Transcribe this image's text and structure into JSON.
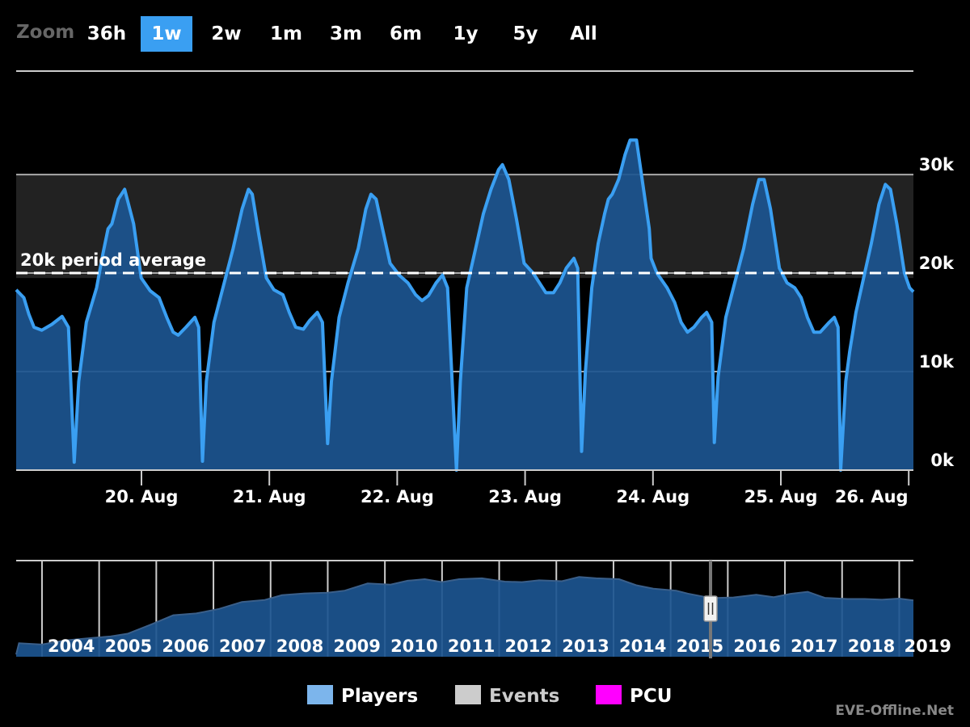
{
  "zoom": {
    "label": "Zoom",
    "buttons": [
      {
        "label": "36h",
        "active": false
      },
      {
        "label": "1w",
        "active": true
      },
      {
        "label": "2w",
        "active": false
      },
      {
        "label": "1m",
        "active": false
      },
      {
        "label": "3m",
        "active": false
      },
      {
        "label": "6m",
        "active": false
      },
      {
        "label": "1y",
        "active": false
      },
      {
        "label": "5y",
        "active": false
      },
      {
        "label": "All",
        "active": false
      }
    ]
  },
  "watermark": "EVE-Offline.Net",
  "chart_data": [
    {
      "type": "area",
      "title": "",
      "x_start": "19. Aug 00:00",
      "x_end": "26. Aug 01:00",
      "x_ticks": [
        "20. Aug",
        "21. Aug",
        "22. Aug",
        "23. Aug",
        "24. Aug",
        "25. Aug",
        "26. Aug"
      ],
      "y_ticks": [
        "0k",
        "10k",
        "20k",
        "30k"
      ],
      "ylim": [
        0,
        40500
      ],
      "plot_band": {
        "from": 19500,
        "to": 30000,
        "color": "#222222"
      },
      "plot_line": {
        "value": 20000,
        "label": "20k period average"
      },
      "grid": true,
      "series": [
        {
          "name": "Players",
          "color": "#3a9ff2",
          "fill": "#1c5590",
          "points": [
            [
              0.0,
              18300
            ],
            [
              0.06,
              17500
            ],
            [
              0.1,
              15800
            ],
            [
              0.14,
              14500
            ],
            [
              0.2,
              14200
            ],
            [
              0.28,
              14800
            ],
            [
              0.36,
              15600
            ],
            [
              0.41,
              14500
            ],
            [
              0.455,
              800
            ],
            [
              0.49,
              9000
            ],
            [
              0.55,
              15000
            ],
            [
              0.63,
              18500
            ],
            [
              0.68,
              22000
            ],
            [
              0.72,
              24500
            ],
            [
              0.75,
              25000
            ],
            [
              0.8,
              27500
            ],
            [
              0.85,
              28500
            ],
            [
              0.92,
              25000
            ],
            [
              0.98,
              19500
            ],
            [
              1.05,
              18200
            ],
            [
              1.12,
              17500
            ],
            [
              1.18,
              15500
            ],
            [
              1.23,
              14000
            ],
            [
              1.27,
              13700
            ],
            [
              1.33,
              14500
            ],
            [
              1.4,
              15500
            ],
            [
              1.43,
              14500
            ],
            [
              1.46,
              900
            ],
            [
              1.49,
              9000
            ],
            [
              1.55,
              15000
            ],
            [
              1.62,
              18500
            ],
            [
              1.7,
              22500
            ],
            [
              1.77,
              26500
            ],
            [
              1.82,
              28500
            ],
            [
              1.85,
              28000
            ],
            [
              1.9,
              24000
            ],
            [
              1.96,
              19500
            ],
            [
              2.02,
              18300
            ],
            [
              2.09,
              17800
            ],
            [
              2.14,
              16000
            ],
            [
              2.19,
              14500
            ],
            [
              2.25,
              14300
            ],
            [
              2.3,
              15200
            ],
            [
              2.36,
              16000
            ],
            [
              2.4,
              15000
            ],
            [
              2.44,
              2700
            ],
            [
              2.47,
              9000
            ],
            [
              2.53,
              15500
            ],
            [
              2.6,
              19000
            ],
            [
              2.68,
              22500
            ],
            [
              2.74,
              26500
            ],
            [
              2.78,
              28000
            ],
            [
              2.82,
              27500
            ],
            [
              2.87,
              24500
            ],
            [
              2.93,
              21000
            ],
            [
              3.0,
              19800
            ],
            [
              3.07,
              19000
            ],
            [
              3.13,
              17800
            ],
            [
              3.18,
              17200
            ],
            [
              3.23,
              17700
            ],
            [
              3.29,
              19000
            ],
            [
              3.34,
              19800
            ],
            [
              3.38,
              18500
            ],
            [
              3.45,
              0
            ],
            [
              3.48,
              9000
            ],
            [
              3.53,
              18500
            ],
            [
              3.6,
              22500
            ],
            [
              3.66,
              26000
            ],
            [
              3.72,
              28500
            ],
            [
              3.78,
              30500
            ],
            [
              3.81,
              31000
            ],
            [
              3.86,
              29500
            ],
            [
              3.92,
              25500
            ],
            [
              3.98,
              21000
            ],
            [
              4.05,
              20000
            ],
            [
              4.1,
              19000
            ],
            [
              4.15,
              18000
            ],
            [
              4.21,
              18000
            ],
            [
              4.26,
              19000
            ],
            [
              4.31,
              20500
            ],
            [
              4.37,
              21500
            ],
            [
              4.4,
              20500
            ],
            [
              4.43,
              1900
            ],
            [
              4.46,
              10000
            ],
            [
              4.51,
              18500
            ],
            [
              4.56,
              23000
            ],
            [
              4.61,
              26000
            ],
            [
              4.64,
              27500
            ],
            [
              4.67,
              28000
            ],
            [
              4.72,
              29500
            ],
            [
              4.77,
              32000
            ],
            [
              4.81,
              33500
            ],
            [
              4.86,
              33500
            ],
            [
              4.91,
              29000
            ],
            [
              4.96,
              24500
            ],
            [
              4.975,
              21500
            ],
            [
              5.02,
              20000
            ],
            [
              5.1,
              18500
            ],
            [
              5.16,
              17000
            ],
            [
              5.21,
              15000
            ],
            [
              5.26,
              14000
            ],
            [
              5.31,
              14500
            ],
            [
              5.37,
              15500
            ],
            [
              5.41,
              16000
            ],
            [
              5.45,
              15000
            ],
            [
              5.47,
              2800
            ],
            [
              5.5,
              9500
            ],
            [
              5.56,
              15500
            ],
            [
              5.63,
              19000
            ],
            [
              5.7,
              22500
            ],
            [
              5.77,
              27000
            ],
            [
              5.82,
              29500
            ],
            [
              5.86,
              29500
            ],
            [
              5.91,
              26500
            ],
            [
              5.98,
              20500
            ],
            [
              6.04,
              19000
            ],
            [
              6.1,
              18500
            ],
            [
              6.15,
              17500
            ],
            [
              6.2,
              15500
            ],
            [
              6.25,
              14000
            ],
            [
              6.3,
              14000
            ],
            [
              6.37,
              15000
            ],
            [
              6.41,
              15500
            ],
            [
              6.44,
              14500
            ],
            [
              6.46,
              0
            ],
            [
              6.5,
              9000
            ],
            [
              6.53,
              12000
            ],
            [
              6.58,
              16000
            ],
            [
              6.64,
              19500
            ],
            [
              6.7,
              23000
            ],
            [
              6.76,
              27000
            ],
            [
              6.81,
              29000
            ],
            [
              6.85,
              28500
            ],
            [
              6.9,
              25000
            ],
            [
              6.96,
              20000
            ],
            [
              7.0,
              18500
            ],
            [
              7.03,
              18100
            ]
          ]
        }
      ]
    },
    {
      "type": "area",
      "title": "",
      "x_ticks": [
        "2004",
        "2005",
        "2006",
        "2007",
        "2008",
        "2009",
        "2010",
        "2011",
        "2012",
        "2013",
        "2014",
        "2015",
        "2016",
        "2017",
        "2018",
        "2019"
      ],
      "x_range": [
        2003.35,
        2019.05
      ],
      "ylim": [
        0,
        40500
      ],
      "selected_range": [
        2015.45,
        2015.55
      ],
      "series": [
        {
          "name": "Players",
          "color": "#3a5f8a",
          "fill": "#1c5590",
          "points": [
            [
              2003.35,
              1000
            ],
            [
              2003.4,
              6000
            ],
            [
              2003.8,
              5400
            ],
            [
              2004.2,
              7200
            ],
            [
              2004.7,
              8400
            ],
            [
              2005.0,
              9000
            ],
            [
              2005.3,
              10200
            ],
            [
              2005.7,
              14200
            ],
            [
              2006.1,
              18400
            ],
            [
              2006.5,
              19200
            ],
            [
              2006.9,
              21200
            ],
            [
              2007.3,
              24300
            ],
            [
              2007.7,
              25200
            ],
            [
              2008.0,
              27300
            ],
            [
              2008.4,
              28100
            ],
            [
              2008.8,
              28400
            ],
            [
              2009.1,
              29300
            ],
            [
              2009.5,
              32500
            ],
            [
              2009.9,
              32000
            ],
            [
              2010.2,
              33700
            ],
            [
              2010.5,
              34400
            ],
            [
              2010.8,
              33100
            ],
            [
              2011.1,
              34400
            ],
            [
              2011.5,
              34800
            ],
            [
              2011.9,
              33300
            ],
            [
              2012.2,
              33100
            ],
            [
              2012.5,
              33900
            ],
            [
              2012.9,
              33500
            ],
            [
              2013.2,
              35400
            ],
            [
              2013.5,
              34800
            ],
            [
              2013.9,
              34400
            ],
            [
              2014.2,
              31700
            ],
            [
              2014.5,
              30200
            ],
            [
              2014.9,
              29300
            ],
            [
              2015.1,
              28000
            ],
            [
              2015.5,
              26000
            ],
            [
              2015.9,
              26300
            ],
            [
              2016.3,
              27500
            ],
            [
              2016.6,
              26400
            ],
            [
              2016.9,
              27900
            ],
            [
              2017.2,
              28800
            ],
            [
              2017.5,
              26100
            ],
            [
              2017.9,
              25600
            ],
            [
              2018.2,
              25600
            ],
            [
              2018.5,
              25300
            ],
            [
              2018.8,
              25800
            ],
            [
              2019.05,
              25000
            ]
          ]
        }
      ]
    }
  ],
  "legend": [
    {
      "label": "Players",
      "color": "#7cb5ec",
      "text_color": "#ffffff"
    },
    {
      "label": "Events",
      "color": "#cccccc",
      "text_color": "#cccccc"
    },
    {
      "label": "PCU",
      "color": "#ff00ff",
      "text_color": "#ffffff"
    }
  ]
}
